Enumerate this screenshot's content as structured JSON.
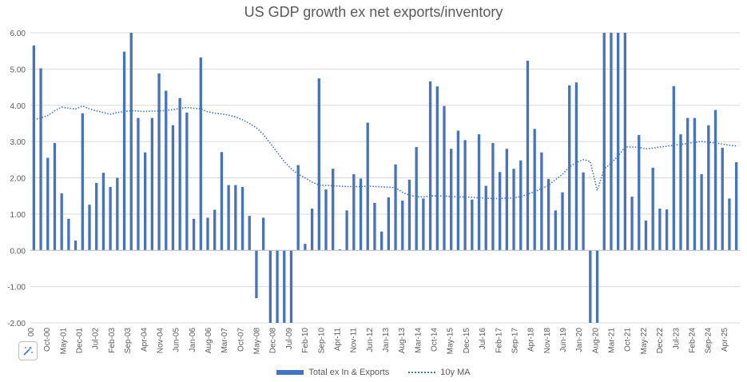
{
  "chart_data": {
    "type": "bar",
    "title": "US GDP growth ex net exports/inventory",
    "ylim": [
      -2.0,
      6.0
    ],
    "yticks": [
      "6.00",
      "5.00",
      "4.00",
      "3.00",
      "2.00",
      "1.00",
      "0.00",
      "-1.00",
      "-2.00"
    ],
    "ytick_values": [
      6,
      5,
      4,
      3,
      2,
      1,
      0,
      -1,
      -2
    ],
    "xtick_labels": [
      "00",
      "Oct-00",
      "May-01",
      "Dec-01",
      "Jul-02",
      "Feb-03",
      "Sep-03",
      "Apr-04",
      "Nov-04",
      "Jun-05",
      "Jan-06",
      "Aug-06",
      "Mar-07",
      "Oct-07",
      "May-08",
      "Dec-08",
      "Jul-09",
      "Feb-10",
      "Sep-10",
      "Apr-11",
      "Nov-11",
      "Jun-12",
      "Jan-13",
      "Aug-13",
      "Mar-14",
      "Oct-14",
      "May-15",
      "Dec-15",
      "Jul-16",
      "Feb-17",
      "Sep-17",
      "Apr-18",
      "Nov-18",
      "Jun-19",
      "Jan-20",
      "Aug-20",
      "Mar-21",
      "Oct-21",
      "May-22",
      "Dec-22",
      "Jul-23",
      "Feb-24",
      "Sep-24",
      "Apr-25"
    ],
    "series": [
      {
        "name": "Total ex In & Exports",
        "type": "bar",
        "color": "#4472C4",
        "values": [
          5.65,
          5.02,
          2.55,
          2.96,
          1.57,
          0.87,
          0.27,
          3.78,
          1.26,
          1.86,
          2.14,
          1.75,
          2.0,
          5.48,
          6.0,
          3.65,
          2.7,
          3.65,
          4.88,
          4.4,
          3.45,
          4.2,
          3.8,
          0.87,
          5.32,
          0.9,
          1.12,
          2.71,
          1.8,
          1.8,
          1.75,
          0.95,
          -1.32,
          0.9,
          -2.0,
          -2.0,
          -2.0,
          -2.0,
          2.35,
          0.18,
          1.15,
          4.74,
          1.68,
          2.25,
          0.03,
          1.1,
          2.1,
          1.98,
          3.52,
          1.31,
          0.52,
          1.46,
          2.37,
          1.37,
          1.95,
          2.85,
          1.43,
          4.66,
          4.52,
          3.98,
          2.8,
          3.3,
          3.04,
          1.4,
          3.2,
          1.78,
          2.96,
          2.16,
          2.8,
          2.25,
          2.48,
          5.23,
          3.35,
          2.7,
          1.97,
          1.1,
          1.6,
          4.55,
          4.63,
          2.15,
          -2.0,
          -2.0,
          6.0,
          6.0,
          6.0,
          6.0,
          1.48,
          3.18,
          0.82,
          2.28,
          1.15,
          1.13,
          4.53,
          3.2,
          3.65,
          3.65,
          2.1,
          3.45,
          3.87,
          2.83,
          1.43,
          2.43
        ]
      },
      {
        "name": "10y MA",
        "type": "line",
        "style": "dotted",
        "color": "#4472C4",
        "values": [
          3.6,
          3.65,
          3.72,
          3.85,
          3.95,
          3.92,
          3.9,
          3.98,
          3.9,
          3.85,
          3.8,
          3.75,
          3.8,
          3.83,
          3.85,
          3.84,
          3.83,
          3.84,
          3.84,
          3.86,
          3.88,
          3.91,
          3.94,
          3.92,
          3.9,
          3.82,
          3.78,
          3.76,
          3.73,
          3.68,
          3.6,
          3.5,
          3.38,
          3.2,
          2.95,
          2.7,
          2.45,
          2.25,
          2.1,
          2.0,
          1.88,
          1.8,
          1.79,
          1.78,
          1.77,
          1.76,
          1.76,
          1.76,
          1.77,
          1.76,
          1.75,
          1.74,
          1.73,
          1.6,
          1.52,
          1.48,
          1.47,
          1.5,
          1.5,
          1.5,
          1.48,
          1.47,
          1.47,
          1.46,
          1.45,
          1.44,
          1.43,
          1.43,
          1.44,
          1.45,
          1.48,
          1.55,
          1.62,
          1.7,
          1.8,
          1.95,
          2.1,
          2.3,
          2.42,
          2.5,
          2.45,
          1.65,
          2.25,
          2.4,
          2.6,
          2.85,
          2.85,
          2.84,
          2.8,
          2.82,
          2.85,
          2.87,
          2.9,
          2.92,
          2.95,
          2.98,
          3.0,
          2.98,
          2.96,
          2.93,
          2.9,
          2.88
        ]
      }
    ],
    "legend_position": "bottom",
    "grid": "horizontal"
  }
}
